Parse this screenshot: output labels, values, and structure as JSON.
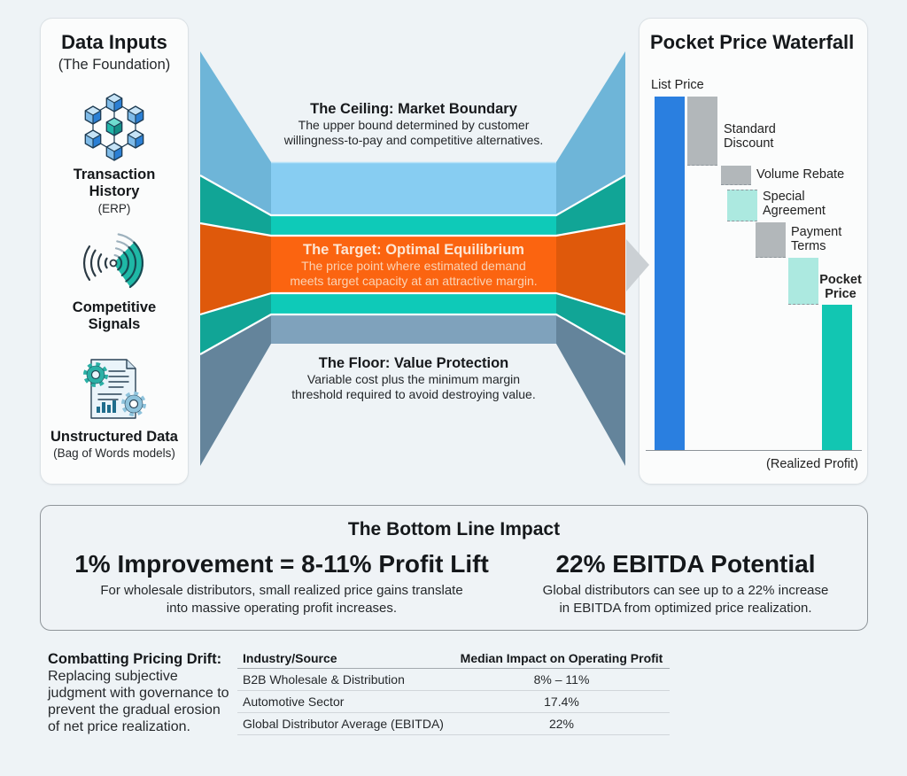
{
  "data_inputs": {
    "title": "Data Inputs",
    "subtitle": "(The Foundation)",
    "items": [
      {
        "icon": "network-cubes-icon",
        "title_lines": [
          "Transaction",
          "History"
        ],
        "sub": "(ERP)"
      },
      {
        "icon": "signal-icon",
        "title_lines": [
          "Competitive",
          "Signals"
        ]
      },
      {
        "icon": "document-gears-icon",
        "title_lines": [
          "Unstructured Data"
        ],
        "sub": "(Bag of Words models)"
      }
    ]
  },
  "funnel": {
    "ceiling": {
      "title": "The Ceiling: Market Boundary",
      "desc_lines": [
        "The upper bound determined by customer",
        "willingness-to-pay and competitive alternatives."
      ]
    },
    "target": {
      "title": "The Target: Optimal Equilibrium",
      "desc_lines": [
        "The price point where estimated demand",
        "meets target capacity at an attractive margin."
      ]
    },
    "floor": {
      "title": "The Floor: Value Protection",
      "desc_lines": [
        "Variable cost plus the minimum margin",
        "threshold required to avoid destroying value."
      ]
    },
    "colors": {
      "ceiling": "#87cdf2",
      "buffer": "#0ecab8",
      "target": "#fb6410",
      "floor": "#7fa2bc"
    }
  },
  "waterfall": {
    "title": "Pocket Price Waterfall",
    "labels": {
      "list_price": "List Price",
      "standard_discount": [
        "Standard",
        "Discount"
      ],
      "volume_rebate": "Volume Rebate",
      "special_agreement": [
        "Special",
        "Agreement"
      ],
      "payment_terms": [
        "Payment",
        "Terms"
      ],
      "pocket_price": [
        "Pocket",
        "Price"
      ]
    },
    "footer": "(Realized Profit)"
  },
  "bottom_line": {
    "title": "The Bottom Line Impact",
    "left": {
      "headline": "1% Improvement = 8-11% Profit Lift",
      "desc_lines": [
        "For wholesale distributors, small realized price gains translate",
        "into massive operating profit increases."
      ]
    },
    "right": {
      "headline": "22% EBITDA Potential",
      "desc_lines": [
        "Global distributors can see up to a 22% increase",
        "in EBITDA from optimized price realization."
      ]
    }
  },
  "pricing_drift": {
    "title": "Combatting Pricing Drift:",
    "body_lines": [
      "Replacing subjective",
      "judgment with governance to",
      "prevent the gradual erosion",
      "of net price realization."
    ]
  },
  "table": {
    "headers": [
      "Industry/Source",
      "Median Impact on Operating Profit"
    ],
    "rows": [
      [
        "B2B Wholesale & Distribution",
        "8% – 11%"
      ],
      [
        "Automotive Sector",
        "17.4%"
      ],
      [
        "Global Distributor Average (EBITDA)",
        "22%"
      ]
    ]
  },
  "chart_data": {
    "type": "bar",
    "subtype": "waterfall",
    "title": "Pocket Price Waterfall",
    "xlabel": "",
    "ylabel": "",
    "ylim": [
      0,
      100
    ],
    "grid": false,
    "legend": null,
    "footer": "(Realized Profit)",
    "bars": [
      {
        "key": "list-price",
        "label": "List Price",
        "start": 0,
        "end": 100,
        "kind": "total",
        "color": "#2a7fe0",
        "connector": "none"
      },
      {
        "key": "standard-discount",
        "label": "Standard Discount",
        "start": 100,
        "end": 80.5,
        "kind": "decrease",
        "color": "#b2b7ba",
        "connector": "bottom"
      },
      {
        "key": "volume-rebate",
        "label": "Volume Rebate",
        "start": 80.5,
        "end": 75,
        "kind": "decrease",
        "color": "#b2b7ba",
        "connector": "bottom"
      },
      {
        "key": "special-agreement",
        "label": "Special Agreement",
        "start": 73.75,
        "end": 64.75,
        "kind": "decrease",
        "color": "#ace9e0",
        "connector": "both"
      },
      {
        "key": "payment-terms",
        "label": "Payment Terms",
        "start": 64.5,
        "end": 54.5,
        "kind": "decrease",
        "color": "#b2b7ba",
        "connector": "bottom"
      },
      {
        "key": "unlabeled-adjustment",
        "label": "",
        "start": 54.5,
        "end": 41.25,
        "kind": "decrease",
        "color": "#ace9e0",
        "connector": "bottom"
      },
      {
        "key": "pocket-price",
        "label": "Pocket Price",
        "start": 0,
        "end": 41.25,
        "kind": "total",
        "color": "#12c6b2",
        "connector": "none"
      }
    ]
  }
}
